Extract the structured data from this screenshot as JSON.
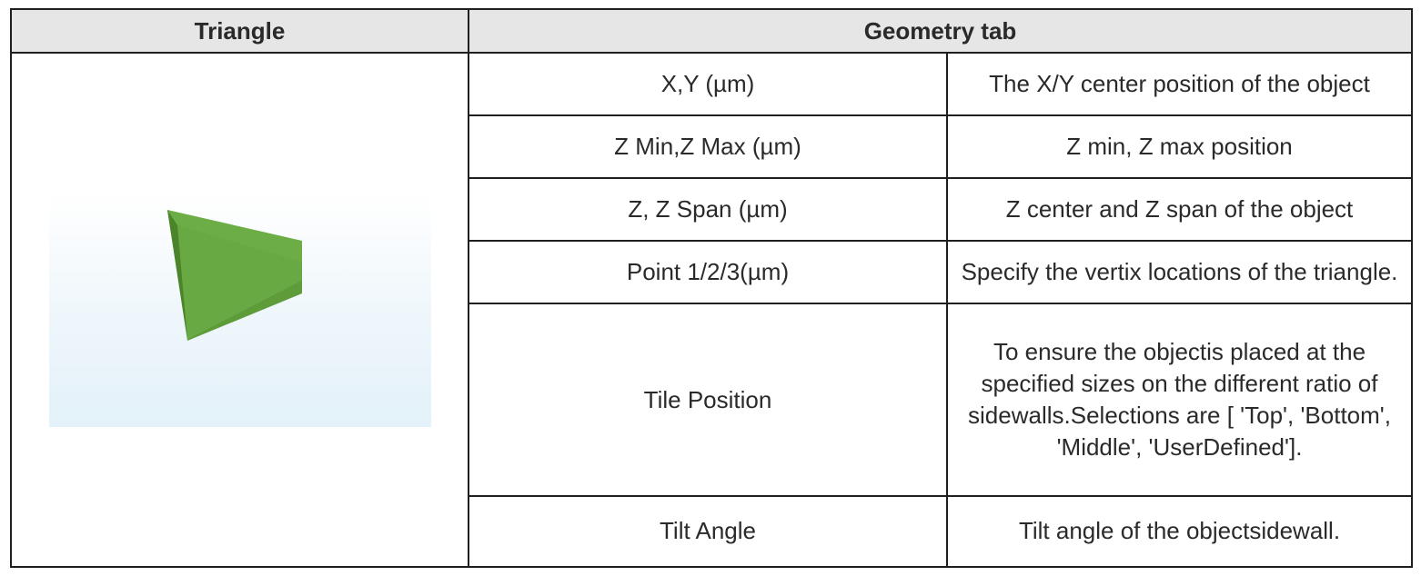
{
  "header": {
    "left": "Triangle",
    "right": "Geometry tab"
  },
  "rows": [
    {
      "param": "X,Y (µm)",
      "desc": "The X/Y center position of the object"
    },
    {
      "param": "Z Min,Z Max (µm)",
      "desc": "Z min, Z max position"
    },
    {
      "param": "Z, Z Span (µm)",
      "desc": "Z center and Z span of the object"
    },
    {
      "param": "Point 1/2/3(µm)",
      "desc": "Specify the vertix locations of the triangle."
    },
    {
      "param": "Tile Position",
      "desc": "To ensure the objectis placed at the specified sizes on the different ratio of sidewalls.Selections are [ 'Top', 'Bottom', 'Middle', 'UserDefined']."
    },
    {
      "param": "Tilt Angle",
      "desc": "Tilt angle of the objectsidewall."
    }
  ],
  "image": {
    "icon": "green-triangle-prism",
    "colors": {
      "top": "#6cad46",
      "side": "#5e9c3a",
      "edge": "#4f8a2f"
    }
  }
}
